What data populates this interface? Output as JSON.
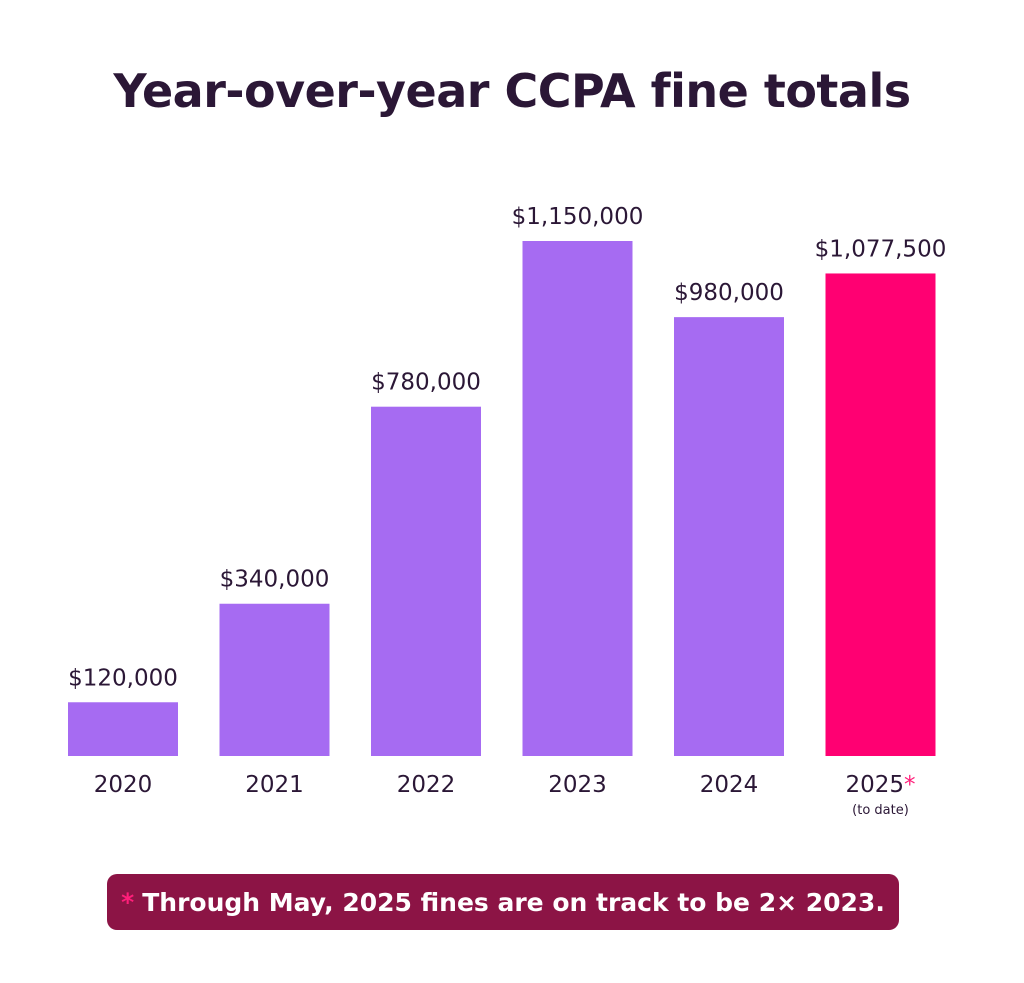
{
  "title": "Year-over-year CCPA fine totals",
  "footnote": {
    "marker": "*",
    "text": "Through May, 2025 fines are on track to be 2× 2023."
  },
  "colors": {
    "bar": "#a66bf2",
    "highlight": "#ff0072",
    "title": "#2b1736",
    "footnote_bg": "#8c1445",
    "asterisk": "#ff1f7a"
  },
  "chart_data": {
    "type": "bar",
    "title": "Year-over-year CCPA fine totals",
    "categories": [
      "2020",
      "2021",
      "2022",
      "2023",
      "2024",
      "2025"
    ],
    "category_marks": [
      "",
      "",
      "",
      "",
      "",
      "*"
    ],
    "category_notes": [
      "",
      "",
      "",
      "",
      "",
      "(to date)"
    ],
    "values": [
      120000,
      340000,
      780000,
      1150000,
      980000,
      1077500
    ],
    "value_labels": [
      "$120,000",
      "$340,000",
      "$780,000",
      "$1,150,000",
      "$980,000",
      "$1,077,500"
    ],
    "highlighted": [
      false,
      false,
      false,
      false,
      false,
      true
    ],
    "ylim": [
      0,
      1150000
    ],
    "grid": false,
    "legend": "none",
    "xlabel": "",
    "ylabel": ""
  }
}
